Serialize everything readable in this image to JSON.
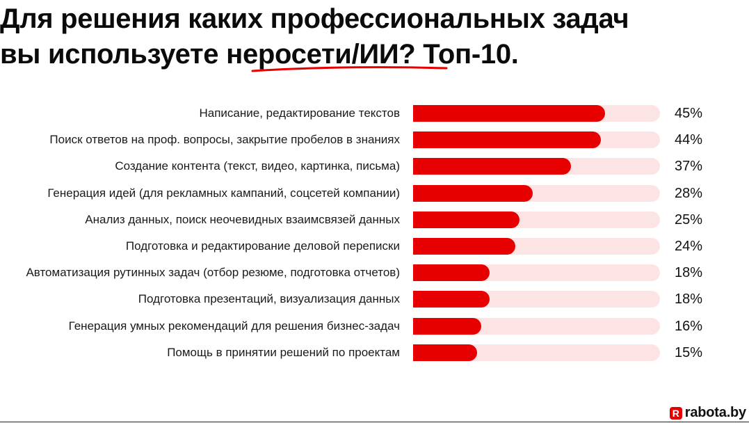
{
  "header": {
    "title_line1": "Для решения каких профессиональных задач",
    "title_line2_prefix": "вы используете ",
    "title_line2_highlight": "неросети/ИИ",
    "title_line2_suffix": "? Топ-10."
  },
  "colors": {
    "bar_fill": "#e60000",
    "bar_track": "#fde4e4",
    "underline": "#e60000",
    "text": "#111111"
  },
  "chart_data": {
    "type": "bar",
    "orientation": "horizontal",
    "title": "Для решения каких профессиональных задач вы используете неросети/ИИ? Топ-10.",
    "xlabel": "",
    "ylabel": "",
    "xlim": [
      0,
      58
    ],
    "grid": false,
    "legend": null,
    "categories": [
      "Написание, редактирование текстов",
      "Поиск ответов на проф. вопросы, закрытие пробелов в знаниях",
      "Создание контента (текст, видео, картинка, письма)",
      "Генерация идей (для рекламных кампаний, соцсетей компании)",
      "Анализ данных, поиск неочевидных взаимсвязей данных",
      "Подготовка и редактирование деловой переписки",
      "Автоматизация рутинных задач (отбор резюме, подготовка отчетов)",
      "Подготовка презентаций, визуализация данных",
      "Генерация умных рекомендаций для решения бизнес-задач",
      "Помощь в принятии решений по проектам"
    ],
    "values": [
      45,
      44,
      37,
      28,
      25,
      24,
      18,
      18,
      16,
      15
    ],
    "value_labels": [
      "45%",
      "44%",
      "37%",
      "28%",
      "25%",
      "24%",
      "18%",
      "18%",
      "16%",
      "15%"
    ]
  },
  "footer": {
    "logo_mark": "R",
    "logo_text": "rabota.by"
  }
}
